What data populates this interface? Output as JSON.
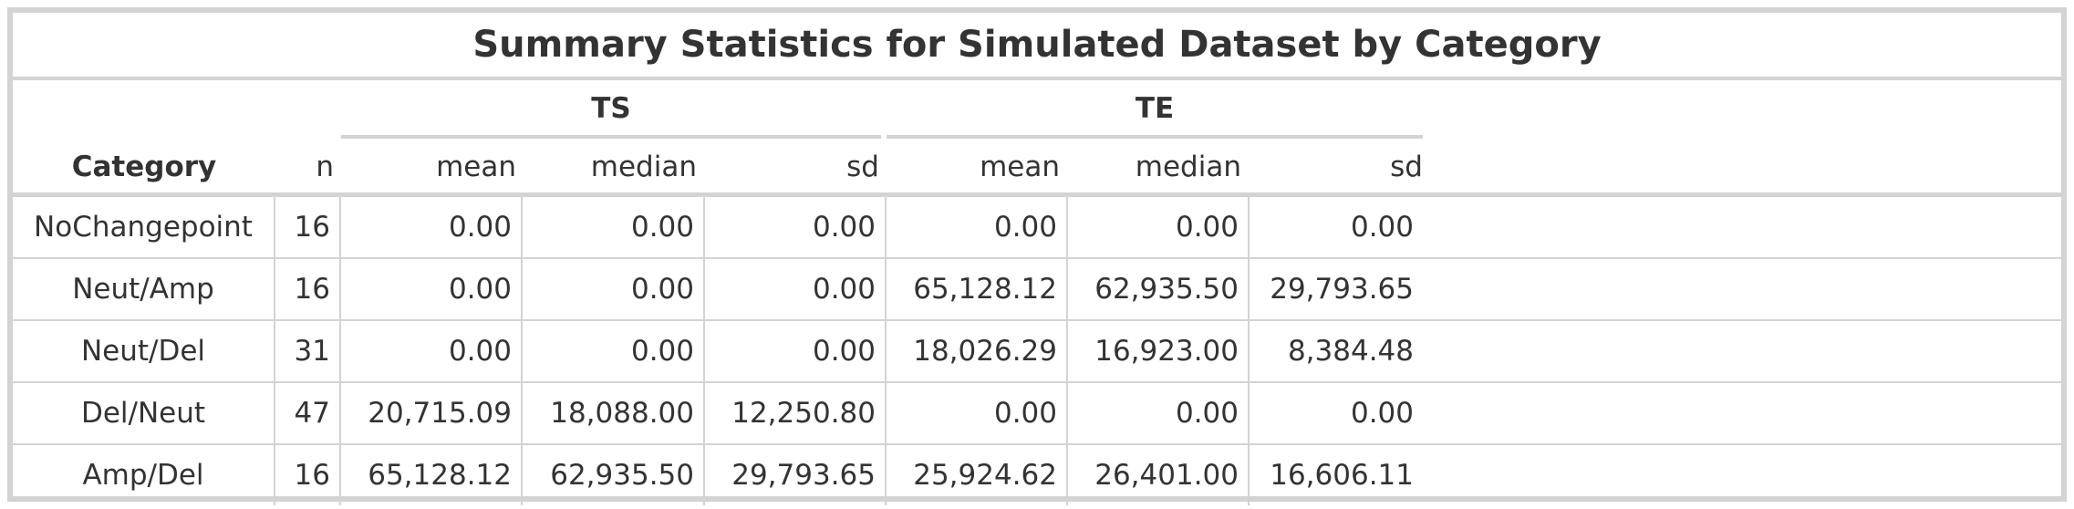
{
  "title": "Summary Statistics for Simulated Dataset by Category",
  "spanners": [
    {
      "label": "TS"
    },
    {
      "label": "TE"
    }
  ],
  "columns": [
    "Category",
    "n",
    "mean",
    "median",
    "sd",
    "mean",
    "median",
    "sd"
  ],
  "rows": [
    [
      "NoChangepoint",
      "16",
      "0.00",
      "0.00",
      "0.00",
      "0.00",
      "0.00",
      "0.00"
    ],
    [
      "Neut/Amp",
      "16",
      "0.00",
      "0.00",
      "0.00",
      "65,128.12",
      "62,935.50",
      "29,793.65"
    ],
    [
      "Neut/Del",
      "31",
      "0.00",
      "0.00",
      "0.00",
      "18,026.29",
      "16,923.00",
      "8,384.48"
    ],
    [
      "Del/Neut",
      "47",
      "20,715.09",
      "18,088.00",
      "12,250.80",
      "0.00",
      "0.00",
      "0.00"
    ],
    [
      "Amp/Del",
      "16",
      "65,128.12",
      "62,935.50",
      "29,793.65",
      "25,924.62",
      "26,401.00",
      "16,606.11"
    ]
  ],
  "colors": {
    "border": "#d3d3d3",
    "text": "#333333",
    "background": "#ffffff"
  }
}
